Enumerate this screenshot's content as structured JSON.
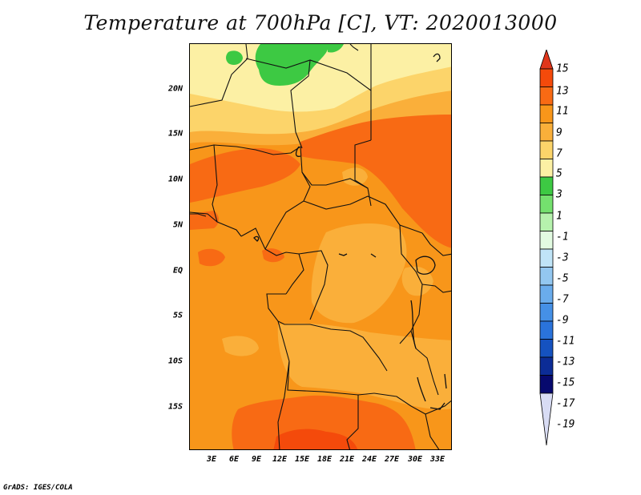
{
  "title": "Temperature at 700hPa [C], VT: 2020013000",
  "credit": "GrADS: IGES/COLA",
  "lat_labels": [
    "20N",
    "15N",
    "10N",
    "5N",
    "EQ",
    "5S",
    "10S",
    "15S"
  ],
  "lon_labels": [
    "3E",
    "6E",
    "9E",
    "12E",
    "15E",
    "18E",
    "21E",
    "24E",
    "27E",
    "30E",
    "33E"
  ],
  "colorbar": {
    "labels": [
      "15",
      "13",
      "11",
      "9",
      "7",
      "5",
      "3",
      "1",
      "-1",
      "-3",
      "-5",
      "-7",
      "-9",
      "-11",
      "-13",
      "-15",
      "-17",
      "-19"
    ],
    "colors": [
      "#e0361b",
      "#f44a0b",
      "#f86a14",
      "#f8961a",
      "#faaf3a",
      "#fcd46a",
      "#fcf0a4",
      "#3dc943",
      "#74e06e",
      "#b6f2ad",
      "#e2fbe1",
      "#c0e4f7",
      "#93c7f0",
      "#6aacec",
      "#4590e6",
      "#2a73db",
      "#1552c0",
      "#0c2c96",
      "#07096e",
      "#d8dcf4"
    ]
  },
  "colors": {
    "t_2": "#3dc943",
    "t_4": "#fcf0a4",
    "t_6": "#fcd46a",
    "t_8": "#faaf3a",
    "t_10": "#f8961a",
    "t_12": "#f86a14",
    "t_14": "#f44a0b",
    "border": "#111111",
    "frame": "#000000"
  }
}
